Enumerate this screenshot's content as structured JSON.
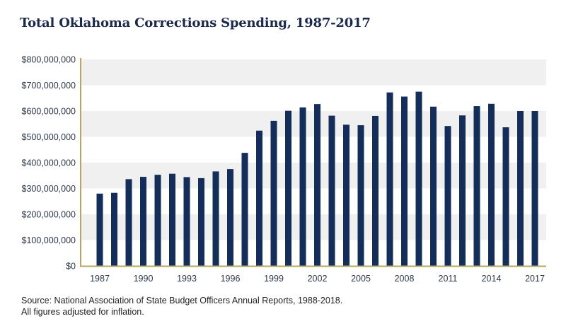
{
  "chart_data": {
    "type": "bar",
    "title": "Total Oklahoma Corrections Spending, 1987-2017",
    "xlabel": "",
    "ylabel": "",
    "ylim": [
      0,
      800000000
    ],
    "yticks": [
      0,
      100000000,
      200000000,
      300000000,
      400000000,
      500000000,
      600000000,
      700000000,
      800000000
    ],
    "ytick_labels": [
      "$0",
      "$100,000,000",
      "$200,000,000",
      "$300,000,000",
      "$400,000,000",
      "$500,000,000",
      "$600,000,000",
      "$700,000,000",
      "$800,000,000"
    ],
    "xtick_labels": [
      "1987",
      "1990",
      "1993",
      "1996",
      "1999",
      "2002",
      "2005",
      "2008",
      "2011",
      "2014",
      "2017"
    ],
    "categories": [
      "1987",
      "1988",
      "1989",
      "1990",
      "1991",
      "1992",
      "1993",
      "1994",
      "1995",
      "1996",
      "1997",
      "1998",
      "1999",
      "2000",
      "2001",
      "2002",
      "2003",
      "2004",
      "2005",
      "2006",
      "2007",
      "2008",
      "2009",
      "2010",
      "2011",
      "2012",
      "2013",
      "2014",
      "2015",
      "2016",
      "2017"
    ],
    "values": [
      280000000,
      283000000,
      336000000,
      345000000,
      353000000,
      357000000,
      344000000,
      340000000,
      366000000,
      375000000,
      438000000,
      524000000,
      562000000,
      601000000,
      614000000,
      627000000,
      582000000,
      547000000,
      545000000,
      581000000,
      672000000,
      656000000,
      675000000,
      617000000,
      542000000,
      583000000,
      619000000,
      628000000,
      537000000,
      600000000,
      600000000
    ],
    "grid": "alternating horizontal bands",
    "legend": "none",
    "colors": {
      "bar": "#152d59",
      "axis": "#b5a760",
      "band": "#f0f0f0",
      "title": "#1b2a4a"
    }
  },
  "source_note": {
    "line1": "Source: National Association of State Budget Officers Annual Reports, 1988-2018.",
    "line2": "All figures adjusted for inflation."
  }
}
